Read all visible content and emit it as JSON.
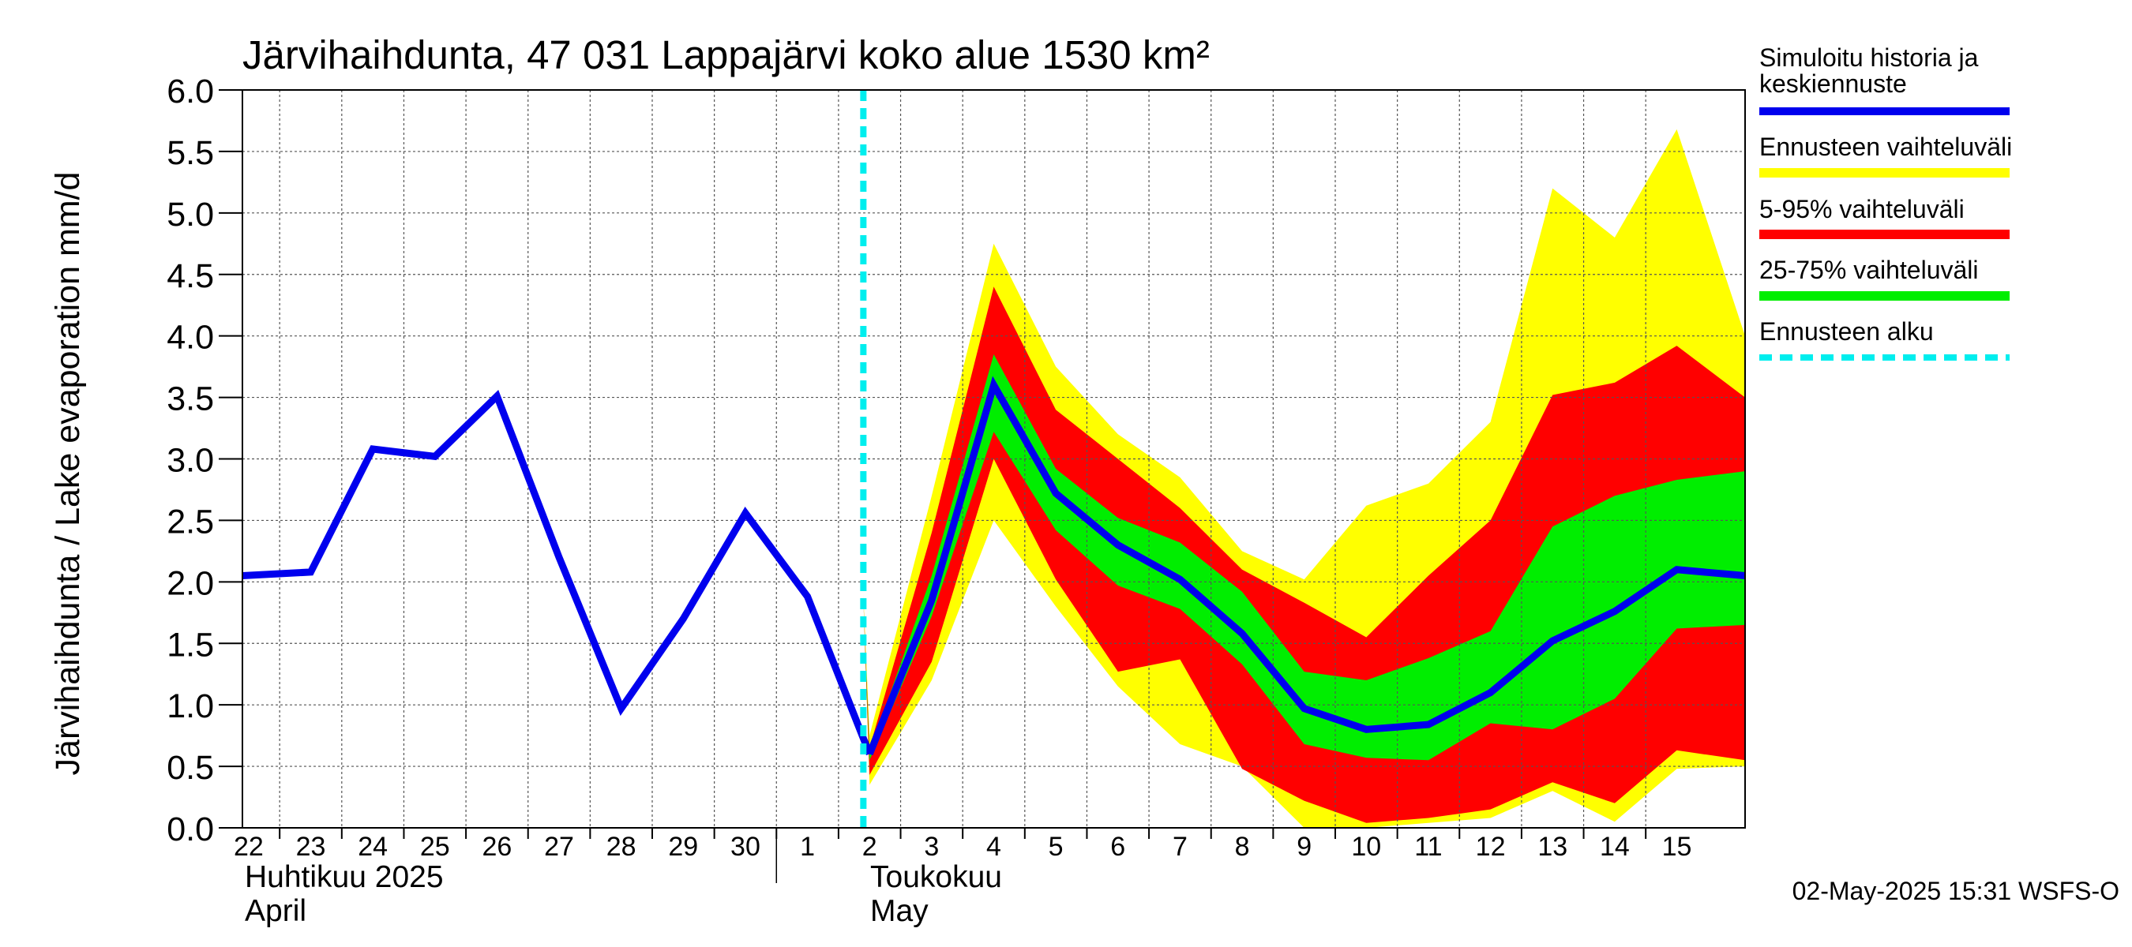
{
  "chart_data": {
    "type": "area",
    "title": "Järvihaihdunta, 47 031 Lappajärvi koko alue 1530 km²",
    "ylabel": "Järvihaihdunta / Lake evaporation   mm/d",
    "ylim": [
      0,
      6
    ],
    "yticks": [
      "0.0",
      "0.5",
      "1.0",
      "1.5",
      "2.0",
      "2.5",
      "3.0",
      "3.5",
      "4.0",
      "4.5",
      "5.0",
      "5.5",
      "6.0"
    ],
    "xlim": [
      -0.1,
      24.1
    ],
    "x_tick_labels": [
      "22",
      "23",
      "24",
      "25",
      "26",
      "27",
      "28",
      "29",
      "30",
      "1",
      "2",
      "3",
      "4",
      "5",
      "6",
      "7",
      "8",
      "9",
      "10",
      "11",
      "12",
      "13",
      "14",
      "15"
    ],
    "month_labels": {
      "april_fi": "Huhtikuu  2025",
      "april_en": "April",
      "may_fi": "Toukokuu",
      "may_en": "May"
    },
    "forecast_start_x": 9.9,
    "history": {
      "name": "Simuloitu historia ja keskiennuste",
      "x": [
        -0.1,
        1,
        2,
        3,
        4,
        5,
        6,
        7,
        8,
        9,
        10
      ],
      "y": [
        2.05,
        2.08,
        3.08,
        3.02,
        3.51,
        2.2,
        0.97,
        1.7,
        2.56,
        1.88,
        0.6
      ]
    },
    "median_forecast": {
      "x": [
        10,
        11,
        12,
        13,
        14,
        15,
        16,
        17,
        18,
        19,
        20,
        21,
        22,
        23,
        24.1
      ],
      "y": [
        0.6,
        1.85,
        3.6,
        2.72,
        2.3,
        2.02,
        1.58,
        0.97,
        0.8,
        0.84,
        1.1,
        1.52,
        1.76,
        2.1,
        2.05
      ]
    },
    "bands_x": [
      9.9,
      10,
      11,
      12,
      13,
      14,
      15,
      16,
      17,
      18,
      19,
      20,
      21,
      22,
      23,
      24.1
    ],
    "bands": [
      {
        "name": "Ennusteen vaihteluväli",
        "color": "#ffff00",
        "upper": [
          1.9,
          0.75,
          2.7,
          4.75,
          3.75,
          3.2,
          2.85,
          2.25,
          2.02,
          2.62,
          2.8,
          3.3,
          5.2,
          4.8,
          5.68,
          4.0
        ],
        "lower": [
          1.9,
          0.35,
          1.2,
          2.5,
          1.8,
          1.15,
          0.68,
          0.5,
          0.0,
          0.0,
          0.04,
          0.08,
          0.3,
          0.05,
          0.48,
          0.5
        ]
      },
      {
        "name": "5-95% vaihteluväli",
        "color": "#ff0000",
        "upper": [
          1.85,
          0.65,
          2.4,
          4.4,
          3.4,
          3.0,
          2.6,
          2.1,
          1.83,
          1.55,
          2.05,
          2.5,
          3.52,
          3.62,
          3.92,
          3.5
        ],
        "lower": [
          1.85,
          0.43,
          1.35,
          3.0,
          2.02,
          1.27,
          1.37,
          0.48,
          0.22,
          0.04,
          0.08,
          0.15,
          0.37,
          0.2,
          0.63,
          0.55
        ]
      },
      {
        "name": "25-75% vaihteluväli",
        "color": "#00ee00",
        "upper": [
          1.85,
          0.62,
          2.05,
          3.85,
          2.92,
          2.52,
          2.32,
          1.92,
          1.27,
          1.2,
          1.38,
          1.6,
          2.45,
          2.7,
          2.83,
          2.9
        ],
        "lower": [
          1.85,
          0.55,
          1.72,
          3.22,
          2.42,
          1.97,
          1.78,
          1.33,
          0.68,
          0.57,
          0.55,
          0.85,
          0.8,
          1.05,
          1.62,
          1.65
        ]
      }
    ],
    "legend": {
      "history_line1": "Simuloitu historia ja",
      "history_line2": "keskiennuste",
      "range": "Ennusteen vaihteluväli",
      "p5_95": "5-95% vaihteluväli",
      "p25_75": "25-75% vaihteluväli",
      "start": "Ennusteen alku"
    },
    "colors": {
      "median": "#0000ee",
      "forecast_start": "#00eeee",
      "yellow": "#ffff00",
      "red": "#ff0000",
      "green": "#00ee00"
    }
  },
  "footer": {
    "timestamp": "02-May-2025 15:31 WSFS-O"
  }
}
